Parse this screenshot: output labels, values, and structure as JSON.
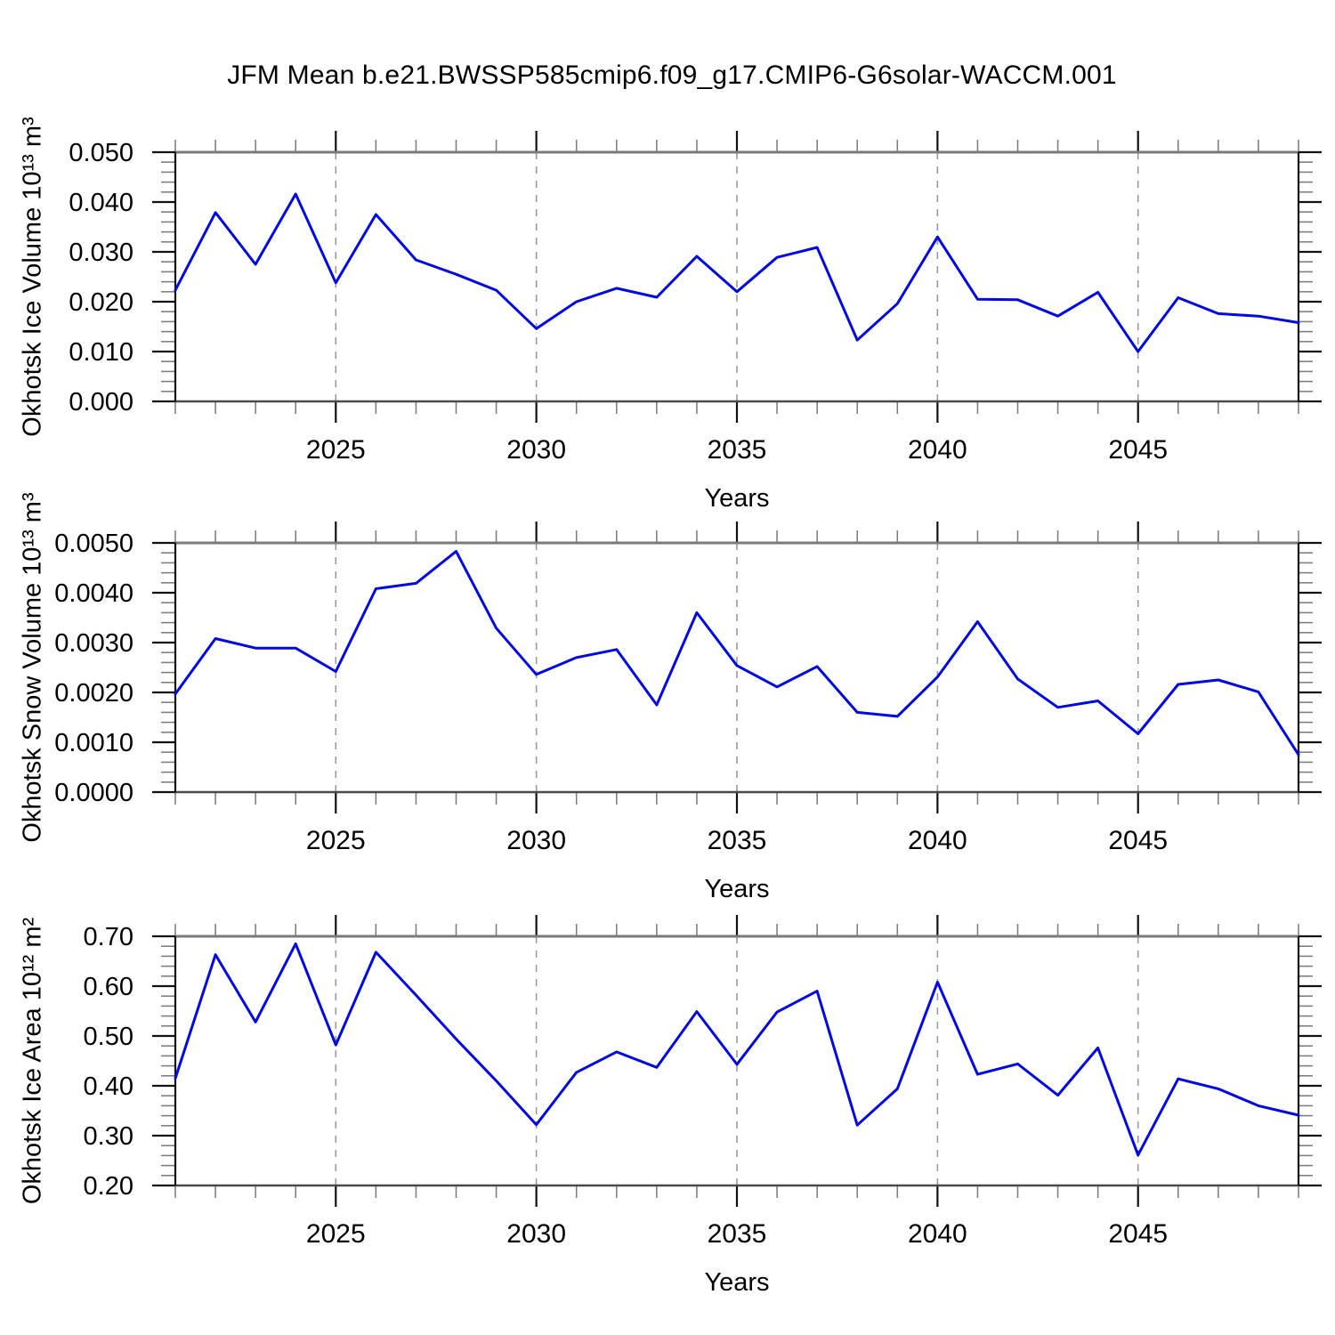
{
  "title": "JFM Mean b.e21.BWSSP585cmip6.f09_g17.CMIP6-G6solar-WACCM.001",
  "chart_data": [
    {
      "type": "line",
      "ylabel": "Okhotsk Ice Volume 10¹³ m³",
      "xlabel": "Years",
      "years": [
        2021,
        2022,
        2023,
        2024,
        2025,
        2026,
        2027,
        2028,
        2029,
        2030,
        2031,
        2032,
        2033,
        2034,
        2035,
        2036,
        2037,
        2038,
        2039,
        2040,
        2041,
        2042,
        2043,
        2044,
        2045,
        2046,
        2047,
        2048,
        2049
      ],
      "values": [
        0.0223,
        0.0379,
        0.0275,
        0.0416,
        0.0238,
        0.0375,
        0.0284,
        0.0255,
        0.0223,
        0.0146,
        0.02,
        0.0227,
        0.0209,
        0.0291,
        0.022,
        0.0289,
        0.0309,
        0.0123,
        0.0196,
        0.033,
        0.0205,
        0.0204,
        0.0171,
        0.0219,
        0.01,
        0.0208,
        0.0176,
        0.0171,
        0.0158
      ],
      "xlim": [
        2021,
        2049
      ],
      "ylim": [
        0.0,
        0.05
      ],
      "ytick_major": 0.01,
      "ytick_minor": 0.002,
      "ydecimals": 3,
      "xticks_labeled": [
        2025,
        2030,
        2035,
        2040,
        2045
      ],
      "grid": "vertical-dashed",
      "legend": "none",
      "line_color": "#0008e6"
    },
    {
      "type": "line",
      "ylabel": "Okhotsk Snow Volume 10¹³ m³",
      "xlabel": "Years",
      "years": [
        2021,
        2022,
        2023,
        2024,
        2025,
        2026,
        2027,
        2028,
        2029,
        2030,
        2031,
        2032,
        2033,
        2034,
        2035,
        2036,
        2037,
        2038,
        2039,
        2040,
        2041,
        2042,
        2043,
        2044,
        2045,
        2046,
        2047,
        2048,
        2049
      ],
      "values": [
        0.00197,
        0.00308,
        0.00289,
        0.00289,
        0.00242,
        0.00408,
        0.00419,
        0.00483,
        0.00329,
        0.00236,
        0.0027,
        0.00286,
        0.00175,
        0.0036,
        0.00254,
        0.00211,
        0.00252,
        0.0016,
        0.00152,
        0.00231,
        0.00342,
        0.00227,
        0.0017,
        0.00183,
        0.00117,
        0.00216,
        0.00225,
        0.00201,
        0.00075
      ],
      "xlim": [
        2021,
        2049
      ],
      "ylim": [
        0.0,
        0.005
      ],
      "ytick_major": 0.001,
      "ytick_minor": 0.0002,
      "ydecimals": 4,
      "xticks_labeled": [
        2025,
        2030,
        2035,
        2040,
        2045
      ],
      "grid": "vertical-dashed",
      "legend": "none",
      "line_color": "#0008e6"
    },
    {
      "type": "line",
      "ylabel": "Okhotsk Ice Area 10¹² m²",
      "xlabel": "Years",
      "years": [
        2021,
        2022,
        2023,
        2024,
        2025,
        2026,
        2027,
        2028,
        2029,
        2030,
        2031,
        2032,
        2033,
        2034,
        2035,
        2036,
        2037,
        2038,
        2039,
        2040,
        2041,
        2042,
        2043,
        2044,
        2045,
        2046,
        2047,
        2048,
        2049
      ],
      "values": [
        0.415,
        0.663,
        0.528,
        0.685,
        0.482,
        0.668,
        0.582,
        0.494,
        0.41,
        0.322,
        0.427,
        0.468,
        0.437,
        0.549,
        0.443,
        0.548,
        0.59,
        0.321,
        0.394,
        0.608,
        0.423,
        0.444,
        0.381,
        0.476,
        0.261,
        0.414,
        0.394,
        0.36,
        0.341
      ],
      "xlim": [
        2021,
        2049
      ],
      "ylim": [
        0.2,
        0.7
      ],
      "ytick_major": 0.1,
      "ytick_minor": 0.02,
      "ydecimals": 2,
      "xticks_labeled": [
        2025,
        2030,
        2035,
        2040,
        2045
      ],
      "grid": "vertical-dashed",
      "legend": "none",
      "line_color": "#0008e6"
    }
  ]
}
